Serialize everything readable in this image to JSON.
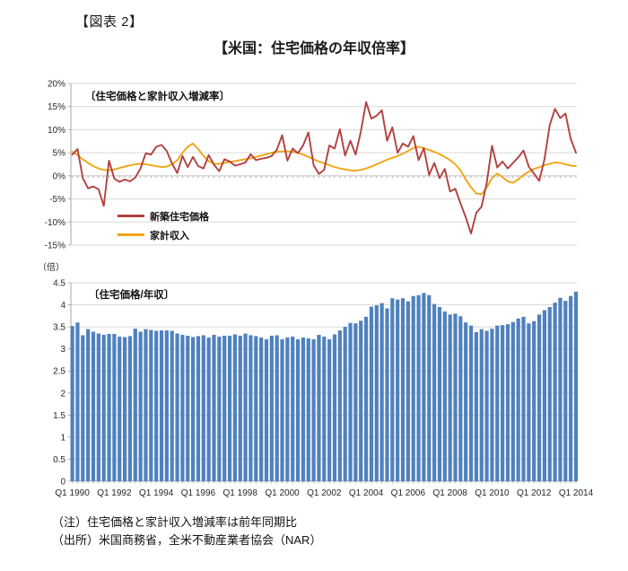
{
  "figure_label": "【図表 2】",
  "title": "【米国：住宅価格の年収倍率】",
  "notes": [
    "（注）住宅価格と家計収入増減率は前年同期比",
    "（出所）米国商務省，全米不動産業者協会（NAR）"
  ],
  "colors": {
    "new_home_price": "#b2413f",
    "household_income": "#f0a513",
    "ratio_bar": "#4f81bd",
    "grid": "#d9d9d9",
    "axis": "#a6a6a6",
    "zero_line": "#c0c0c0"
  },
  "chart_data": [
    {
      "type": "line",
      "panel_label": "〔住宅価格と家計収入増減率〕",
      "x_start": "Q1 1990",
      "x_end": "Q1 2014",
      "x_points": 97,
      "ylim": [
        -15,
        20
      ],
      "ytick_values": [
        20,
        15,
        10,
        5,
        0,
        -5,
        -10,
        -15
      ],
      "ytick_labels": [
        "20%",
        "15%",
        "10%",
        "5%",
        "0%",
        "-5%",
        "-10%",
        "-15%"
      ],
      "grid": true,
      "legend_position": "inside-lower-left",
      "series": [
        {
          "name": "新築住宅価格",
          "color": "#b2413f",
          "values": [
            4.6,
            5.8,
            -0.5,
            -2.7,
            -2.3,
            -2.9,
            -6.5,
            3.3,
            -0.6,
            -1.3,
            -0.8,
            -1.2,
            -0.4,
            1.6,
            4.9,
            4.6,
            6.3,
            6.7,
            5.4,
            2.7,
            0.6,
            4.3,
            1.9,
            4.1,
            2.1,
            1.6,
            4.5,
            2.4,
            1.0,
            3.6,
            3.1,
            2.2,
            2.5,
            2.9,
            4.7,
            3.4,
            3.7,
            3.9,
            4.3,
            5.7,
            8.8,
            3.3,
            5.9,
            4.9,
            6.6,
            9.4,
            2.3,
            0.4,
            1.3,
            6.6,
            5.9,
            10.1,
            4.4,
            7.6,
            4.6,
            9.6,
            16.0,
            12.4,
            13.0,
            14.2,
            7.6,
            10.5,
            5.0,
            7.0,
            6.3,
            8.6,
            3.4,
            6.0,
            0.2,
            2.8,
            -0.5,
            1.5,
            -3.4,
            -2.8,
            -6.0,
            -9.0,
            -12.5,
            -8.0,
            -6.7,
            -1.5,
            6.5,
            1.8,
            3.1,
            1.6,
            2.8,
            4.0,
            5.5,
            2.0,
            0.5,
            -1.1,
            3.6,
            11.0,
            14.5,
            12.5,
            13.5,
            8.0,
            5.0
          ]
        },
        {
          "name": "家計収入",
          "color": "#f0a513",
          "values": [
            5.2,
            4.5,
            3.6,
            2.8,
            2.1,
            1.6,
            1.3,
            1.2,
            1.4,
            1.7,
            2.0,
            2.3,
            2.5,
            2.6,
            2.5,
            2.3,
            2.1,
            1.9,
            2.0,
            2.5,
            3.4,
            5.0,
            6.3,
            7.0,
            5.8,
            4.3,
            3.2,
            2.6,
            2.6,
            2.8,
            3.0,
            3.2,
            3.4,
            3.6,
            3.8,
            4.1,
            4.4,
            4.7,
            5.0,
            5.2,
            5.3,
            5.3,
            5.2,
            5.0,
            4.6,
            4.1,
            3.6,
            3.1,
            2.7,
            2.3,
            1.9,
            1.6,
            1.4,
            1.2,
            1.1,
            1.3,
            1.6,
            2.0,
            2.5,
            3.0,
            3.5,
            3.9,
            4.3,
            4.8,
            5.4,
            6.0,
            6.3,
            6.0,
            5.6,
            5.2,
            4.7,
            4.1,
            3.4,
            2.5,
            1.2,
            -0.8,
            -2.5,
            -3.8,
            -4.0,
            -2.5,
            -0.5,
            0.5,
            -0.3,
            -1.2,
            -1.5,
            -0.8,
            0.2,
            0.9,
            1.5,
            1.9,
            2.3,
            2.6,
            2.9,
            2.8,
            2.5,
            2.2,
            2.1
          ]
        }
      ]
    },
    {
      "type": "bar",
      "panel_label": "〔住宅価格/年収〕",
      "unit_label": "（倍）",
      "x_start": "Q1 1990",
      "x_end": "Q1 2014",
      "x_points": 97,
      "ylim": [
        0,
        4.5
      ],
      "ytick_values": [
        4.5,
        4,
        3.5,
        3,
        2.5,
        2,
        1.5,
        1,
        0.5,
        0
      ],
      "ytick_labels": [
        "4.5",
        "4",
        "3.5",
        "3",
        "2.5",
        "2",
        "1.5",
        "1",
        "0.5",
        "0"
      ],
      "x_tick_labels": [
        "Q1 1990",
        "Q1 1992",
        "Q1 1994",
        "Q1 1996",
        "Q1 1998",
        "Q1 2000",
        "Q1 2002",
        "Q1 2004",
        "Q1 2006",
        "Q1 2008",
        "Q1 2010",
        "Q1 2012",
        "Q1 2014"
      ],
      "x_tick_every": 8,
      "grid": true,
      "bar_color": "#4f81bd",
      "values": [
        3.52,
        3.6,
        3.31,
        3.45,
        3.39,
        3.35,
        3.32,
        3.34,
        3.34,
        3.28,
        3.27,
        3.29,
        3.46,
        3.39,
        3.45,
        3.43,
        3.41,
        3.42,
        3.42,
        3.41,
        3.35,
        3.32,
        3.3,
        3.27,
        3.29,
        3.31,
        3.26,
        3.32,
        3.28,
        3.3,
        3.3,
        3.33,
        3.3,
        3.35,
        3.31,
        3.29,
        3.26,
        3.22,
        3.3,
        3.31,
        3.22,
        3.26,
        3.28,
        3.22,
        3.26,
        3.24,
        3.22,
        3.32,
        3.28,
        3.22,
        3.33,
        3.42,
        3.5,
        3.59,
        3.58,
        3.64,
        3.73,
        3.96,
        3.99,
        4.04,
        3.92,
        4.15,
        4.12,
        4.15,
        4.08,
        4.2,
        4.22,
        4.27,
        4.22,
        4.02,
        3.95,
        3.85,
        3.78,
        3.8,
        3.74,
        3.6,
        3.53,
        3.38,
        3.45,
        3.41,
        3.46,
        3.53,
        3.54,
        3.56,
        3.61,
        3.69,
        3.73,
        3.58,
        3.63,
        3.78,
        3.88,
        3.95,
        4.05,
        4.16,
        4.09,
        4.2,
        4.3
      ]
    }
  ]
}
